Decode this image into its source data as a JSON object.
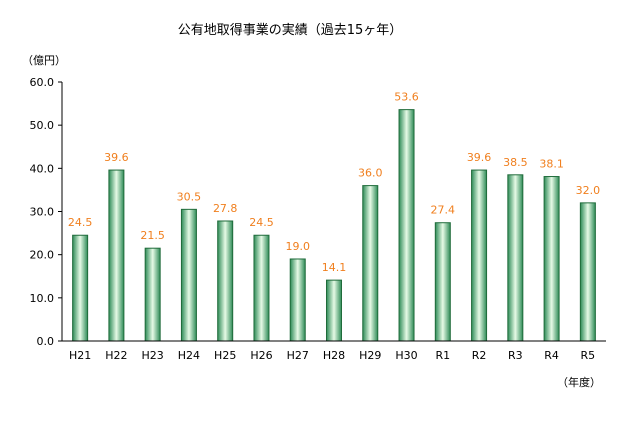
{
  "chart_data": {
    "type": "bar",
    "title": "公有地取得事業の実績（過去15ヶ年）",
    "y_unit_label": "（億円）",
    "x_unit_label": "（年度）",
    "categories": [
      "H21",
      "H22",
      "H23",
      "H24",
      "H25",
      "H26",
      "H27",
      "H28",
      "H29",
      "H30",
      "R1",
      "R2",
      "R3",
      "R4",
      "R5"
    ],
    "values": [
      24.5,
      39.6,
      21.5,
      30.5,
      27.8,
      24.5,
      19.0,
      14.1,
      36.0,
      53.6,
      27.4,
      39.6,
      38.5,
      38.1,
      32.0
    ],
    "value_labels": [
      "24.5",
      "39.6",
      "21.5",
      "30.5",
      "27.8",
      "24.5",
      "19.0",
      "14.1",
      "36.0",
      "53.6",
      "27.4",
      "39.6",
      "38.5",
      "38.1",
      "32.0"
    ],
    "yticks": [
      "0.0",
      "10.0",
      "20.0",
      "30.0",
      "40.0",
      "50.0",
      "60.0"
    ],
    "ylim": [
      0,
      60
    ],
    "grid": false,
    "colors": {
      "bar_dark": "#2e8b57",
      "bar_light": "#e6fae6",
      "bar_edge": "#1f6b3a",
      "label": "#f07f1e",
      "axis": "#000000"
    }
  }
}
